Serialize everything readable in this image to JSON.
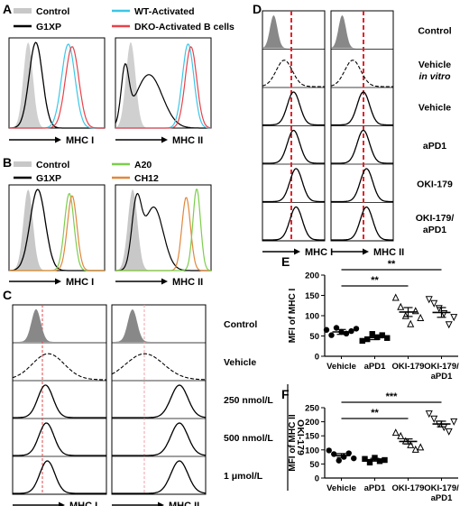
{
  "panels": {
    "A": {
      "letter": "A",
      "legend": [
        {
          "label": "Control",
          "color": "#c8c8c8",
          "kind": "fill"
        },
        {
          "label": "WT-Activated",
          "color": "#3cc6e6",
          "kind": "line"
        },
        {
          "label": "G1XP",
          "color": "#000000",
          "kind": "line"
        },
        {
          "label": "DKO-Activated B cells",
          "color": "#e8424a",
          "kind": "line"
        }
      ],
      "xlabels": [
        "MHC I",
        "MHC II"
      ]
    },
    "B": {
      "letter": "B",
      "legend": [
        {
          "label": "Control",
          "color": "#c8c8c8",
          "kind": "fill"
        },
        {
          "label": "A20",
          "color": "#7dcd4d",
          "kind": "line"
        },
        {
          "label": "G1XP",
          "color": "#000000",
          "kind": "line"
        },
        {
          "label": "CH12",
          "color": "#e0873d",
          "kind": "line"
        }
      ],
      "xlabels": [
        "MHC I",
        "MHC II"
      ]
    },
    "C": {
      "letter": "C",
      "rows": [
        "Control",
        "Vehicle",
        "250 nmol/L",
        "500 nmol/L",
        "1 μmol/L"
      ],
      "bracket": "OKI-179",
      "xlabels": [
        "MHC I",
        "MHC II"
      ]
    },
    "D": {
      "letter": "D",
      "rows": [
        "Control",
        "Vehicle",
        "Vehicle",
        "aPD1",
        "OKI-179",
        "OKI-179/"
      ],
      "row_sub": {
        "1": "in vitro",
        "5": "aPD1"
      },
      "xlabels": [
        "MHC I",
        "MHC II"
      ]
    },
    "E": {
      "letter": "E",
      "significance": [
        "**",
        "**"
      ]
    },
    "F": {
      "letter": "F",
      "significance": [
        "***",
        "**"
      ]
    }
  },
  "chart_data": [
    {
      "panel": "E",
      "type": "scatter",
      "title": "",
      "xlabel": "",
      "ylabel": "MFI of MHC I",
      "categories": [
        "Vehicle",
        "aPD1",
        "OKI-179",
        "OKI-179/\naPD1"
      ],
      "markers": [
        "circle",
        "square",
        "triangle",
        "inverted-triangle"
      ],
      "values": [
        [
          65,
          52,
          70,
          60,
          56,
          62,
          68
        ],
        [
          38,
          42,
          55,
          47,
          52,
          45
        ],
        [
          145,
          122,
          100,
          80,
          112,
          95
        ],
        [
          140,
          130,
          118,
          105,
          78,
          96
        ]
      ],
      "mean": [
        60,
        46,
        109,
        108
      ],
      "sem": [
        6,
        5,
        11,
        12
      ],
      "ylim": [
        0,
        200
      ],
      "yticks": [
        0,
        50,
        100,
        150,
        200
      ]
    },
    {
      "panel": "F",
      "type": "scatter",
      "title": "",
      "xlabel": "",
      "ylabel": "MFI of MHC II",
      "categories": [
        "Vehicle",
        "aPD1",
        "OKI-179",
        "OKI-179/\naPD1"
      ],
      "markers": [
        "circle",
        "square",
        "triangle",
        "inverted-triangle"
      ],
      "values": [
        [
          98,
          85,
          62,
          75,
          88,
          70
        ],
        [
          68,
          55,
          72,
          60,
          64
        ],
        [
          162,
          150,
          132,
          118,
          102,
          110
        ],
        [
          228,
          210,
          192,
          180,
          165,
          200
        ]
      ],
      "mean": [
        80,
        65,
        130,
        192
      ],
      "sem": [
        7,
        5,
        9,
        10
      ],
      "ylim": [
        0,
        250
      ],
      "yticks": [
        0,
        50,
        100,
        150,
        200,
        250
      ]
    }
  ]
}
